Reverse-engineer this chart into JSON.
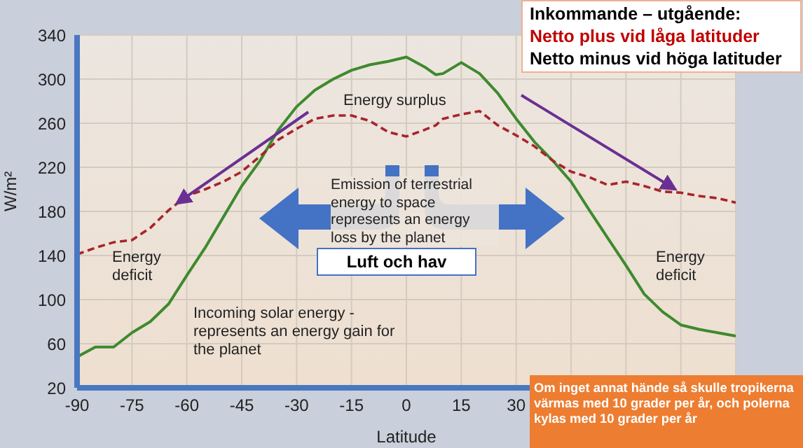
{
  "chart_data": {
    "type": "line",
    "xlabel": "Latitude",
    "ylabel": "W/m²",
    "x": [
      -90,
      -85,
      -80,
      -75,
      -70,
      -65,
      -60,
      -55,
      -50,
      -45,
      -40,
      -35,
      -30,
      -25,
      -20,
      -15,
      -10,
      -5,
      0,
      5,
      8,
      10,
      15,
      20,
      25,
      30,
      35,
      40,
      45,
      50,
      55,
      60,
      65,
      70,
      75,
      80,
      85,
      90
    ],
    "series": [
      {
        "color": "#3e8a2e",
        "line_style": "solid",
        "values": [
          48,
          57,
          57,
          70,
          80,
          96,
          122,
          147,
          175,
          203,
          226,
          254,
          275,
          290,
          300,
          308,
          313,
          316,
          320,
          311,
          304,
          305,
          315,
          305,
          287,
          264,
          243,
          226,
          207,
          181,
          156,
          131,
          105,
          89,
          77,
          73,
          70,
          67
        ]
      },
      {
        "color": "#a8242a",
        "line_style": "dashed",
        "values": [
          141,
          147,
          152,
          154,
          165,
          181,
          194,
          200,
          207,
          216,
          230,
          245,
          255,
          264,
          267,
          267,
          262,
          252,
          248,
          254,
          258,
          264,
          268,
          271,
          258,
          249,
          239,
          226,
          216,
          211,
          204,
          207,
          203,
          198,
          197,
          194,
          192,
          188
        ]
      }
    ],
    "xlim": [
      -90,
      90
    ],
    "xticks": [
      -90,
      -75,
      -60,
      -45,
      -30,
      -15,
      0,
      15,
      30,
      {
        "value": 45,
        "label": null
      },
      {
        "value": 60,
        "label": null
      },
      {
        "value": 75,
        "label": null
      },
      {
        "value": 90,
        "label": null
      }
    ],
    "ylim": [
      20,
      340
    ],
    "yticks": [
      20,
      60,
      100,
      140,
      180,
      220,
      260,
      300,
      340
    ],
    "grid": true,
    "legend": false,
    "marker": "none",
    "annotations": [
      "Inkommande – utgående:",
      "Netto plus vid låga latituder",
      "Netto minus vid höga latituder",
      "Energy surplus",
      "Energy deficit",
      "Energy deficit",
      "Incoming solar energy - represents an energy gain for the planet",
      "Emission of terrestrial energy to space represents an energy loss by the planet",
      "Luft och hav",
      "Om inget annat hände så skulle tropikerna värmas med 10 grader per år, och polerna kylas med 10 grader per år"
    ]
  }
}
